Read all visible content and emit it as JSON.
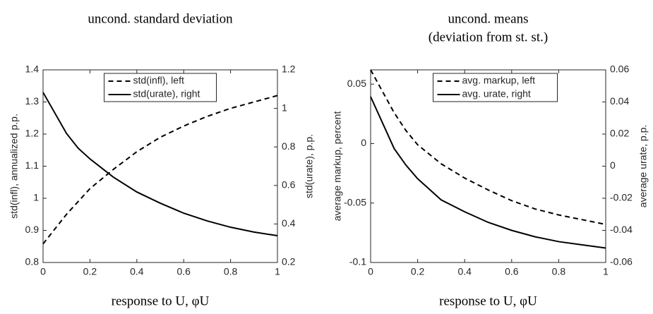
{
  "chart_data": [
    {
      "type": "line",
      "title": [
        "uncond. standard deviation"
      ],
      "xlabel": "response to U, φU",
      "ylabel": "std(infl), annualized p.p.",
      "y2label": "std(urate), p.p.",
      "x": [
        0,
        0.1,
        0.15,
        0.2,
        0.3,
        0.4,
        0.5,
        0.6,
        0.7,
        0.8,
        0.9,
        1
      ],
      "xlim": [
        0,
        1
      ],
      "xticks": [
        0,
        0.2,
        0.4,
        0.6,
        0.8,
        1
      ],
      "ylim": [
        0.8,
        1.4
      ],
      "yticks": [
        0.8,
        0.9,
        1,
        1.1,
        1.2,
        1.3,
        1.4
      ],
      "y2lim": [
        0.2,
        1.2
      ],
      "y2ticks": [
        0.2,
        0.4,
        0.6,
        0.8,
        1,
        1.2
      ],
      "legend": "top",
      "series": [
        {
          "name": "std(infl), left",
          "color": "#000000",
          "dash": true,
          "values": [
            0.858,
            0.95,
            0.99,
            1.03,
            1.09,
            1.145,
            1.19,
            1.225,
            1.255,
            1.28,
            1.3,
            1.32
          ]
        },
        {
          "name": "std(urate), right",
          "color": "#000000",
          "dash": false,
          "axis": "y2",
          "values": [
            1.083,
            0.87,
            0.793,
            0.738,
            0.643,
            0.566,
            0.508,
            0.456,
            0.416,
            0.383,
            0.358,
            0.339
          ]
        }
      ]
    },
    {
      "type": "line",
      "title": [
        "uncond. means",
        "(deviation from st. st.)"
      ],
      "xlabel": "response to U, φU",
      "ylabel": "average markup, percent",
      "y2label": "average urate, p.p.",
      "x": [
        0,
        0.1,
        0.15,
        0.2,
        0.3,
        0.4,
        0.5,
        0.6,
        0.7,
        0.8,
        0.9,
        1
      ],
      "xlim": [
        0,
        1
      ],
      "xticks": [
        0,
        0.2,
        0.4,
        0.6,
        0.8,
        1
      ],
      "ylim": [
        -0.1,
        0.062
      ],
      "yticks": [
        -0.1,
        -0.05,
        0,
        0.05
      ],
      "y2lim": [
        -0.06,
        0.06
      ],
      "y2ticks": [
        -0.06,
        -0.04,
        -0.02,
        0,
        0.02,
        0.04,
        0.06
      ],
      "legend": "top",
      "series": [
        {
          "name": "avg. markup, left",
          "color": "#000000",
          "dash": true,
          "values": [
            0.062,
            0.026,
            0.011,
            -0.001,
            -0.017,
            -0.029,
            -0.039,
            -0.048,
            -0.055,
            -0.06,
            -0.064,
            -0.068
          ]
        },
        {
          "name": "avg. urate, right",
          "color": "#000000",
          "dash": false,
          "axis": "y2",
          "values": [
            0.0433,
            0.011,
            0.0007,
            -0.0078,
            -0.021,
            -0.0284,
            -0.035,
            -0.04,
            -0.044,
            -0.047,
            -0.049,
            -0.051
          ]
        }
      ]
    }
  ]
}
